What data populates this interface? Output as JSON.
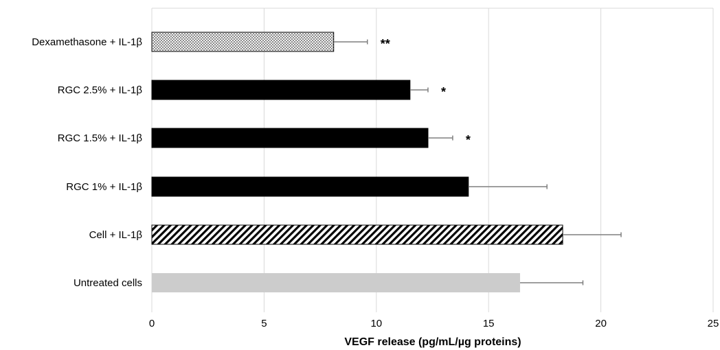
{
  "chart_data": {
    "type": "bar",
    "orientation": "horizontal",
    "categories": [
      "Dexamethasone + IL-1β",
      "RGC 2.5% + IL-1β",
      "RGC 1.5%  + IL-1β",
      "RGC 1% + IL-1β",
      "Cell + IL-1β",
      "Untreated cells"
    ],
    "values": [
      8.1,
      11.5,
      12.3,
      14.1,
      18.3,
      16.4
    ],
    "error": [
      1.5,
      0.8,
      1.1,
      3.5,
      2.6,
      2.8
    ],
    "significance": [
      "**",
      "*",
      "*",
      "",
      "",
      ""
    ],
    "fills": [
      "dots",
      "solid-black",
      "solid-black",
      "solid-black",
      "diagonal-hatch",
      "solid-light-gray"
    ],
    "xlabel": "VEGF release (pg/mL/µg proteins)",
    "xlim": [
      0,
      25
    ],
    "xticks": [
      0,
      5,
      10,
      15,
      20,
      25
    ],
    "xtick_labels": [
      "0",
      "5",
      "10",
      "15",
      "20",
      "25"
    ],
    "grid": "vertical",
    "colors": {
      "solid": "#000000",
      "untreated": "#cccccc",
      "grid": "#d9d9d9",
      "error_bar": "#7f7f7f"
    }
  }
}
